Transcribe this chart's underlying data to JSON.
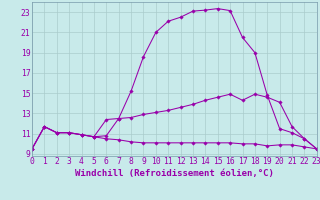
{
  "bg_color": "#c8eaea",
  "line_color": "#9900aa",
  "grid_color": "#aacccc",
  "xlabel": "Windchill (Refroidissement éolien,°C)",
  "xlabel_fontsize": 6.5,
  "tick_fontsize": 5.8,
  "xlim": [
    0,
    23
  ],
  "ylim": [
    8.8,
    24.0
  ],
  "xticks": [
    0,
    1,
    2,
    3,
    4,
    5,
    6,
    7,
    8,
    9,
    10,
    11,
    12,
    13,
    14,
    15,
    16,
    17,
    18,
    19,
    20,
    21,
    22,
    23
  ],
  "yticks": [
    9,
    11,
    13,
    15,
    17,
    19,
    21,
    23
  ],
  "line1_x": [
    0,
    1,
    2,
    3,
    4,
    5,
    6,
    7,
    8,
    9,
    10,
    11,
    12,
    13,
    14,
    15,
    16,
    17,
    18,
    19,
    20,
    21,
    22,
    23
  ],
  "line1_y": [
    9.5,
    11.7,
    11.1,
    11.1,
    10.9,
    10.7,
    10.8,
    12.5,
    15.2,
    18.6,
    21.0,
    22.1,
    22.5,
    23.1,
    23.2,
    23.35,
    23.15,
    20.5,
    19.0,
    14.8,
    11.5,
    11.1,
    10.5,
    9.5
  ],
  "line2_x": [
    0,
    1,
    2,
    3,
    4,
    5,
    6,
    7,
    8,
    9,
    10,
    11,
    12,
    13,
    14,
    15,
    16,
    17,
    18,
    19,
    20,
    21,
    22,
    23
  ],
  "line2_y": [
    9.5,
    11.7,
    11.1,
    11.1,
    10.9,
    10.7,
    12.4,
    12.5,
    12.6,
    12.9,
    13.1,
    13.3,
    13.6,
    13.9,
    14.3,
    14.6,
    14.9,
    14.3,
    14.9,
    14.6,
    14.1,
    11.7,
    10.5,
    9.5
  ],
  "line3_x": [
    0,
    1,
    2,
    3,
    4,
    5,
    6,
    7,
    8,
    9,
    10,
    11,
    12,
    13,
    14,
    15,
    16,
    17,
    18,
    19,
    20,
    21,
    22,
    23
  ],
  "line3_y": [
    9.5,
    11.7,
    11.1,
    11.1,
    10.9,
    10.7,
    10.5,
    10.4,
    10.2,
    10.1,
    10.1,
    10.1,
    10.1,
    10.1,
    10.1,
    10.1,
    10.1,
    10.0,
    10.0,
    9.8,
    9.9,
    9.9,
    9.7,
    9.5
  ]
}
